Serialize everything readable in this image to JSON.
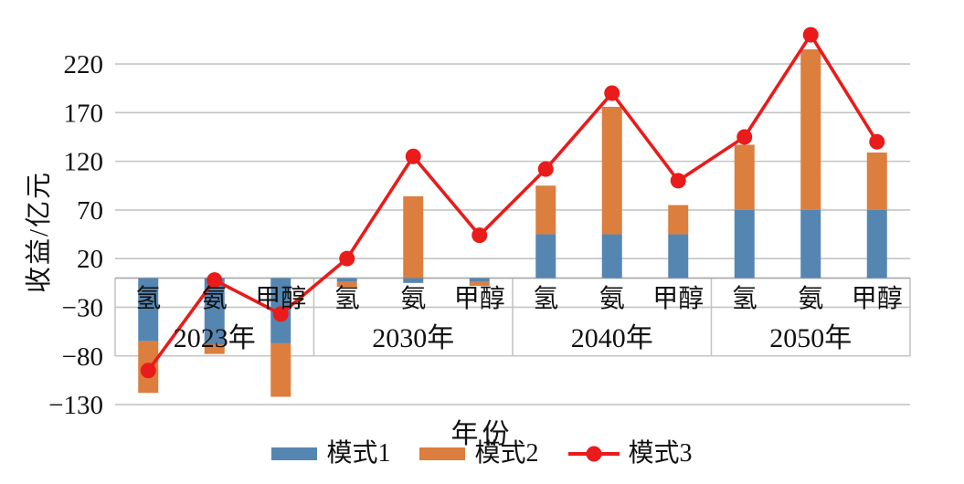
{
  "chart_data": {
    "type": "bar",
    "subtype": "stacked-bars-with-line-overlay",
    "title": "",
    "xlabel": "年份",
    "ylabel": "收益/亿元",
    "groups": [
      {
        "label": "2023年",
        "items": [
          "氢",
          "氨",
          "甲醇"
        ]
      },
      {
        "label": "2030年",
        "items": [
          "氢",
          "氨",
          "甲醇"
        ]
      },
      {
        "label": "2040年",
        "items": [
          "氢",
          "氨",
          "甲醇"
        ]
      },
      {
        "label": "2050年",
        "items": [
          "氢",
          "氨",
          "甲醇"
        ]
      }
    ],
    "series": [
      {
        "name": "模式1",
        "type": "bar",
        "color": "#5586B2",
        "values": [
          -65,
          -68,
          -67,
          -4,
          -5,
          -4,
          45,
          45,
          45,
          70,
          70,
          70
        ]
      },
      {
        "name": "模式2",
        "type": "bar",
        "color": "#DC7E3E",
        "values": [
          -53,
          -10,
          -55,
          -5,
          84,
          -4,
          50,
          131,
          30,
          67,
          165,
          59
        ]
      },
      {
        "name": "模式3",
        "type": "line",
        "color": "#E91B1B",
        "values": [
          -95,
          -2,
          -37,
          20,
          125,
          44,
          112,
          190,
          100,
          145,
          250,
          140
        ]
      }
    ],
    "yticks": [
      220,
      170,
      120,
      70,
      20,
      -30,
      -80,
      -130
    ],
    "ylim": [
      -130,
      272
    ],
    "grid": true,
    "legend_position": "bottom",
    "colors": {
      "grid": "#C4C4C4",
      "axis": "#ABABAB",
      "text": "#111111"
    }
  }
}
